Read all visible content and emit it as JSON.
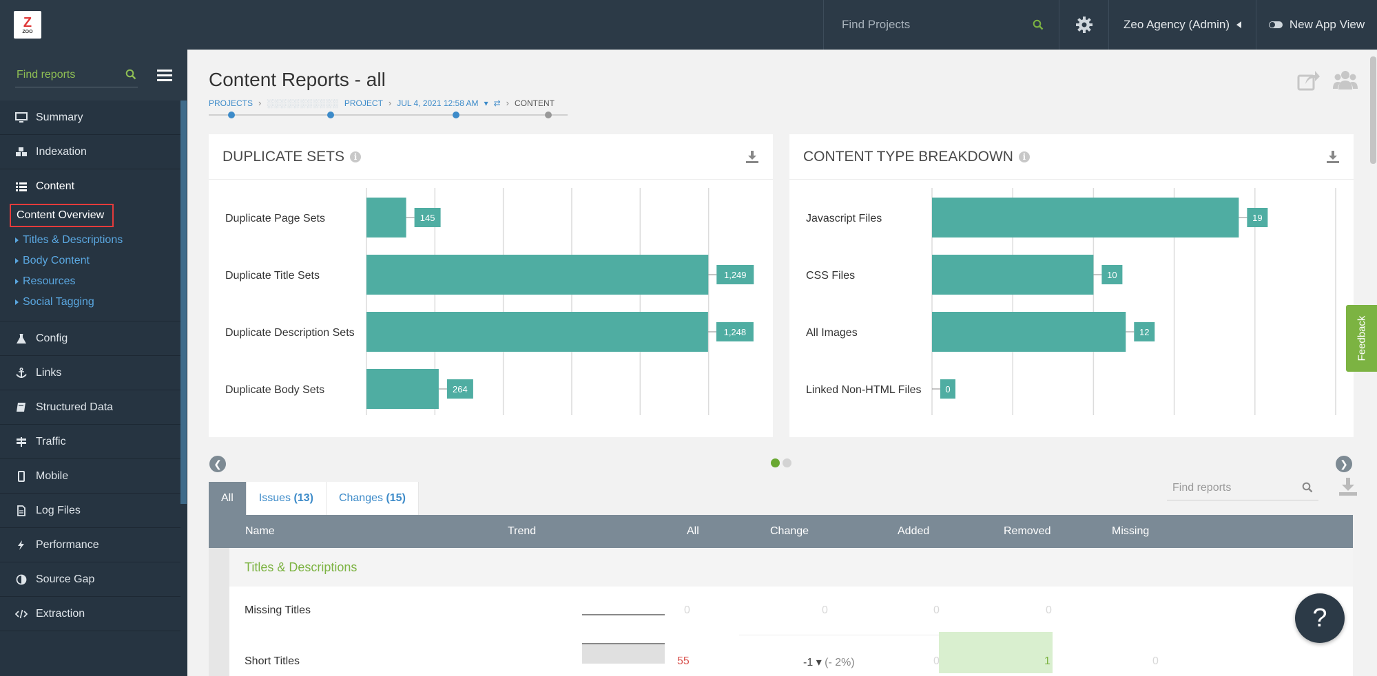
{
  "topbar": {
    "logo_text": "ZOO",
    "search_placeholder": "Find Projects",
    "user": "Zeo Agency (Admin)",
    "app_view": "New App View"
  },
  "sidebar": {
    "search_placeholder": "Find reports",
    "items": [
      {
        "label": "Summary",
        "icon": "monitor-icon"
      },
      {
        "label": "Indexation",
        "icon": "cubes-icon"
      },
      {
        "label": "Content",
        "icon": "list-icon"
      },
      {
        "label": "Config",
        "icon": "flask-icon"
      },
      {
        "label": "Links",
        "icon": "anchor-icon"
      },
      {
        "label": "Structured Data",
        "icon": "book-icon"
      },
      {
        "label": "Traffic",
        "icon": "signpost-icon"
      },
      {
        "label": "Mobile",
        "icon": "mobile-icon"
      },
      {
        "label": "Log Files",
        "icon": "file-icon"
      },
      {
        "label": "Performance",
        "icon": "bolt-icon"
      },
      {
        "label": "Source Gap",
        "icon": "half-circle-icon"
      },
      {
        "label": "Extraction",
        "icon": "code-icon"
      }
    ],
    "content_active": "Content Overview",
    "content_sub": [
      "Titles & Descriptions",
      "Body Content",
      "Resources",
      "Social Tagging"
    ]
  },
  "page": {
    "title": "Content Reports - all",
    "breadcrumb": {
      "projects": "PROJECTS",
      "project_blurred": "░░░░░░░░░░░",
      "project": "PROJECT",
      "date": "JUL 4, 2021 12:58 AM",
      "content": "CONTENT"
    }
  },
  "cards": {
    "duplicate": {
      "title": "DUPLICATE SETS"
    },
    "content_type": {
      "title": "CONTENT TYPE BREAKDOWN"
    }
  },
  "chart_data": [
    {
      "type": "bar",
      "title": "DUPLICATE SETS",
      "orientation": "horizontal",
      "categories": [
        "Duplicate Page Sets",
        "Duplicate Title Sets",
        "Duplicate Description Sets",
        "Duplicate Body Sets"
      ],
      "values": [
        145,
        1249,
        1248,
        264
      ],
      "value_labels": [
        "145",
        "1,249",
        "1,248",
        "264"
      ],
      "xlim": [
        0,
        1500
      ],
      "grid": true,
      "color": "#4fada2"
    },
    {
      "type": "bar",
      "title": "CONTENT TYPE BREAKDOWN",
      "orientation": "horizontal",
      "categories": [
        "Javascript Files",
        "CSS Files",
        "All Images",
        "Linked Non-HTML Files"
      ],
      "values": [
        19,
        10,
        12,
        0
      ],
      "value_labels": [
        "19",
        "10",
        "12",
        "0"
      ],
      "xlim": [
        0,
        25
      ],
      "grid": true,
      "color": "#4fada2"
    }
  ],
  "tabs": {
    "all": "All",
    "issues": "Issues",
    "issues_count": "(13)",
    "changes": "Changes",
    "changes_count": "(15)"
  },
  "table": {
    "search_placeholder": "Find reports",
    "headers": {
      "name": "Name",
      "trend": "Trend",
      "all": "All",
      "change": "Change",
      "added": "Added",
      "removed": "Removed",
      "missing": "Missing"
    },
    "group": "Titles & Descriptions",
    "rows": [
      {
        "name": "Missing Titles",
        "all": "0",
        "change": "0",
        "change_pct": "",
        "added": "0",
        "removed": "0",
        "missing": ""
      },
      {
        "name": "Short Titles",
        "all": "55",
        "change": "-1",
        "change_pct": "(- 2%)",
        "added": "0",
        "removed": "1",
        "missing": "0"
      }
    ]
  },
  "feedback": "Feedback",
  "help": "?",
  "colors": {
    "topbar": "#2c3a47",
    "sidebar": "#263441",
    "bar": "#4fada2",
    "accent_green": "#7cb342",
    "link_blue": "#3d8bc9"
  }
}
